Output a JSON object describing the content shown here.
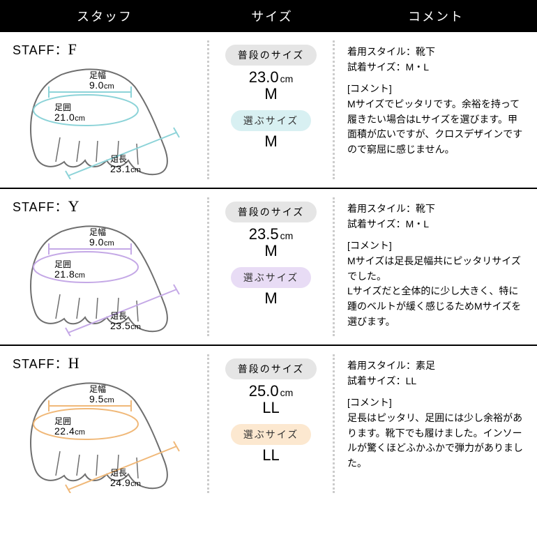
{
  "headers": {
    "staff": "スタッフ",
    "size": "サイズ",
    "comment": "コメント"
  },
  "labels": {
    "staff_prefix": "STAFF：",
    "width": "足幅",
    "girth": "足囲",
    "length": "足長",
    "normal": "普段のサイズ",
    "choose": "選ぶサイズ",
    "cm": "cm",
    "wear_style": "着用スタイル：",
    "try_size": "試着サイズ：",
    "comment_header": "[コメント]"
  },
  "colors": {
    "gray_pill": "#e5e5e5",
    "header_bg": "#000000"
  },
  "entries": [
    {
      "staff": "F",
      "accent": "#8cd3d8",
      "accent_fill": "#d8f0f2",
      "measurements": {
        "width": "9.0",
        "girth": "21.0",
        "length": "23.1"
      },
      "normal_size": {
        "cm": "23.0",
        "letter": "M"
      },
      "choose_size": "M",
      "wear_style": "靴下",
      "try_size": "M・L",
      "comment": "Mサイズでピッタリです。余裕を持って履きたい場合はLサイズを選びます。甲面積が広いですが、クロスデザインですので窮屈に感じません。"
    },
    {
      "staff": "Y",
      "accent": "#c4a8e6",
      "accent_fill": "#e8dcf5",
      "measurements": {
        "width": "9.0",
        "girth": "21.8",
        "length": "23.5"
      },
      "normal_size": {
        "cm": "23.5",
        "letter": "M"
      },
      "choose_size": "M",
      "wear_style": "靴下",
      "try_size": "M・L",
      "comment": "Mサイズは足長足幅共にピッタリサイズでした。\nLサイズだと全体的に少し大きく、特に踵のベルトが緩く感じるためMサイズを選びます。"
    },
    {
      "staff": "H",
      "accent": "#f0b878",
      "accent_fill": "#fce8d0",
      "measurements": {
        "width": "9.5",
        "girth": "22.4",
        "length": "24.9"
      },
      "normal_size": {
        "cm": "25.0",
        "letter": "LL"
      },
      "choose_size": "LL",
      "wear_style": "素足",
      "try_size": "LL",
      "comment": "足長はピッタリ、足囲には少し余裕があります。靴下でも履けました。インソールが驚くほどふかふかで弾力がありました。"
    }
  ]
}
